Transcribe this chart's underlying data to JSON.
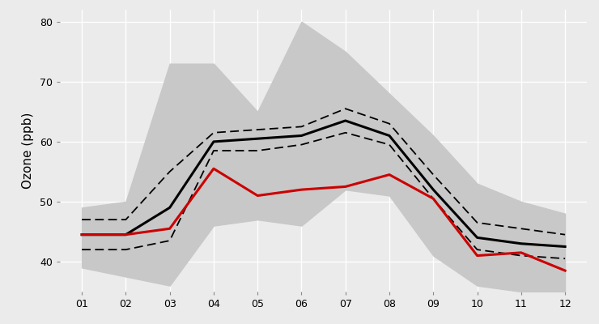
{
  "months": [
    1,
    2,
    3,
    4,
    5,
    6,
    7,
    8,
    9,
    10,
    11,
    12
  ],
  "month_labels": [
    "01",
    "02",
    "03",
    "04",
    "05",
    "06",
    "07",
    "08",
    "09",
    "10",
    "11",
    "12"
  ],
  "mean_1996_2019": [
    44.5,
    44.5,
    49.0,
    60.0,
    60.5,
    61.0,
    63.5,
    61.0,
    52.0,
    44.0,
    43.0,
    42.5
  ],
  "ci_upper": [
    47.0,
    47.0,
    55.0,
    61.5,
    62.0,
    62.5,
    65.5,
    63.0,
    54.5,
    46.5,
    45.5,
    44.5
  ],
  "ci_lower": [
    42.0,
    42.0,
    43.5,
    58.5,
    58.5,
    59.5,
    61.5,
    59.5,
    50.5,
    42.0,
    41.0,
    40.5
  ],
  "range_upper": [
    49.0,
    50.0,
    73.0,
    73.0,
    65.0,
    80.0,
    75.0,
    68.0,
    61.0,
    53.0,
    50.0,
    48.0
  ],
  "range_lower": [
    39.0,
    37.5,
    36.0,
    46.0,
    47.0,
    46.0,
    52.0,
    51.0,
    41.0,
    36.0,
    35.0,
    35.0
  ],
  "data_2020": [
    44.5,
    44.5,
    45.5,
    55.5,
    51.0,
    52.0,
    52.5,
    54.5,
    50.5,
    41.0,
    41.5,
    38.5
  ],
  "ylabel": "Ozone (ppb)",
  "ylim": [
    35,
    82
  ],
  "yticks": [
    40,
    50,
    60,
    70,
    80
  ],
  "background_color": "#EBEBEB",
  "grid_color": "#FFFFFF",
  "mean_color": "#000000",
  "ci_color": "#000000",
  "range_color": "#C8C8C8",
  "line_2020_color": "#CC0000",
  "mean_linewidth": 2.2,
  "ci_linewidth": 1.3,
  "line_2020_linewidth": 2.2,
  "range_alpha": 1.0,
  "tick_fontsize": 9,
  "ylabel_fontsize": 11
}
